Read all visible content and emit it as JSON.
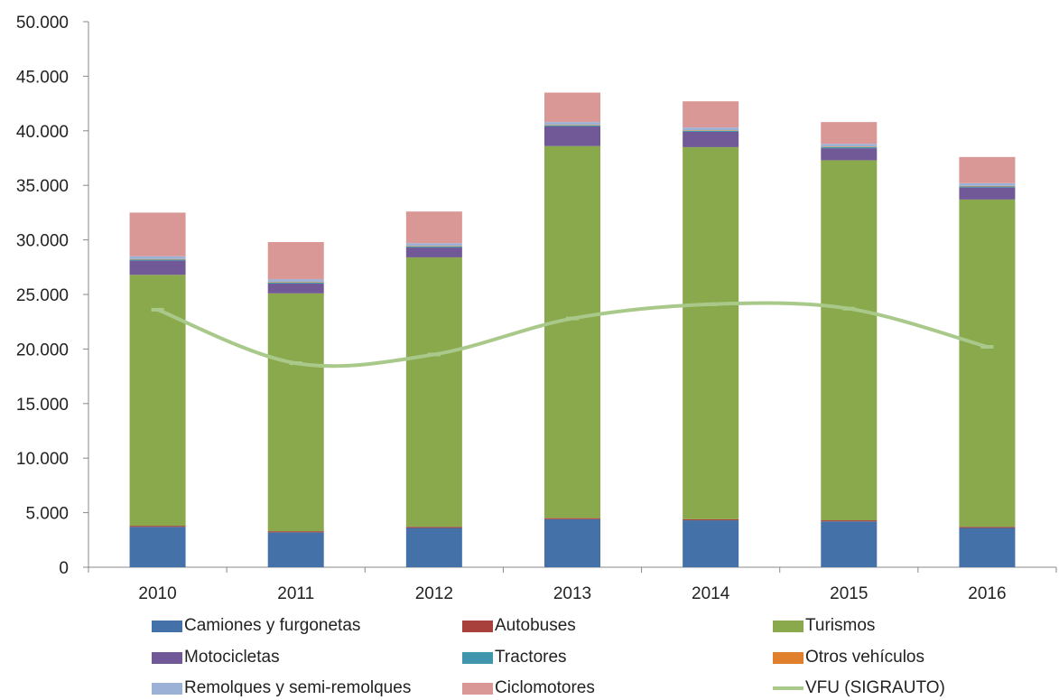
{
  "chart_data": {
    "type": "bar",
    "stacked": true,
    "categories": [
      "2010",
      "2011",
      "2012",
      "2013",
      "2014",
      "2015",
      "2016"
    ],
    "ylim": [
      0,
      50000
    ],
    "yticks": [
      "0",
      "5.000",
      "10.000",
      "15.000",
      "20.000",
      "25.000",
      "30.000",
      "35.000",
      "40.000",
      "45.000",
      "50.000"
    ],
    "ytick_values": [
      0,
      5000,
      10000,
      15000,
      20000,
      25000,
      30000,
      35000,
      40000,
      45000,
      50000
    ],
    "grid": false,
    "legend_position": "bottom",
    "series": [
      {
        "name": "Camiones y furgonetas",
        "color": "#4472a8",
        "values": [
          3700,
          3200,
          3600,
          4400,
          4300,
          4200,
          3600
        ]
      },
      {
        "name": "Autobuses",
        "color": "#a8403c",
        "values": [
          100,
          100,
          100,
          100,
          100,
          100,
          100
        ]
      },
      {
        "name": "Turismos",
        "color": "#8aa84c",
        "values": [
          23000,
          21800,
          24700,
          34100,
          34100,
          33000,
          30000
        ]
      },
      {
        "name": "Motocicletas",
        "color": "#715896",
        "values": [
          1300,
          900,
          900,
          1800,
          1400,
          1100,
          1100
        ]
      },
      {
        "name": "Tractores",
        "color": "#3f96ad",
        "values": [
          100,
          100,
          100,
          100,
          100,
          100,
          100
        ]
      },
      {
        "name": "Otros vehículos",
        "color": "#e0802c",
        "values": [
          50,
          50,
          50,
          50,
          50,
          50,
          50
        ]
      },
      {
        "name": "Remolques y semi-remolques",
        "color": "#9bb1d6",
        "values": [
          250,
          250,
          250,
          250,
          250,
          250,
          250
        ]
      },
      {
        "name": "Ciclomotores",
        "color": "#d99795",
        "values": [
          4000,
          3400,
          2900,
          2700,
          2400,
          2000,
          2400
        ]
      }
    ],
    "line_series": {
      "name": "VFU (SIGRAUTO)",
      "color": "#a9c98a",
      "values": [
        23600,
        18700,
        19500,
        22800,
        24100,
        23700,
        20200
      ]
    }
  },
  "legend": {
    "items": [
      {
        "label": "Camiones y furgonetas",
        "color": "#4472a8",
        "kind": "swatch"
      },
      {
        "label": "Autobuses",
        "color": "#a8403c",
        "kind": "swatch"
      },
      {
        "label": "Turismos",
        "color": "#8aa84c",
        "kind": "swatch"
      },
      {
        "label": "Motocicletas",
        "color": "#715896",
        "kind": "swatch"
      },
      {
        "label": "Tractores",
        "color": "#3f96ad",
        "kind": "swatch"
      },
      {
        "label": "Otros vehículos",
        "color": "#e0802c",
        "kind": "swatch"
      },
      {
        "label": "Remolques y semi-remolques",
        "color": "#9bb1d6",
        "kind": "swatch"
      },
      {
        "label": "Ciclomotores",
        "color": "#d99795",
        "kind": "swatch"
      },
      {
        "label": "VFU (SIGRAUTO)",
        "color": "#a9c98a",
        "kind": "line"
      }
    ]
  }
}
